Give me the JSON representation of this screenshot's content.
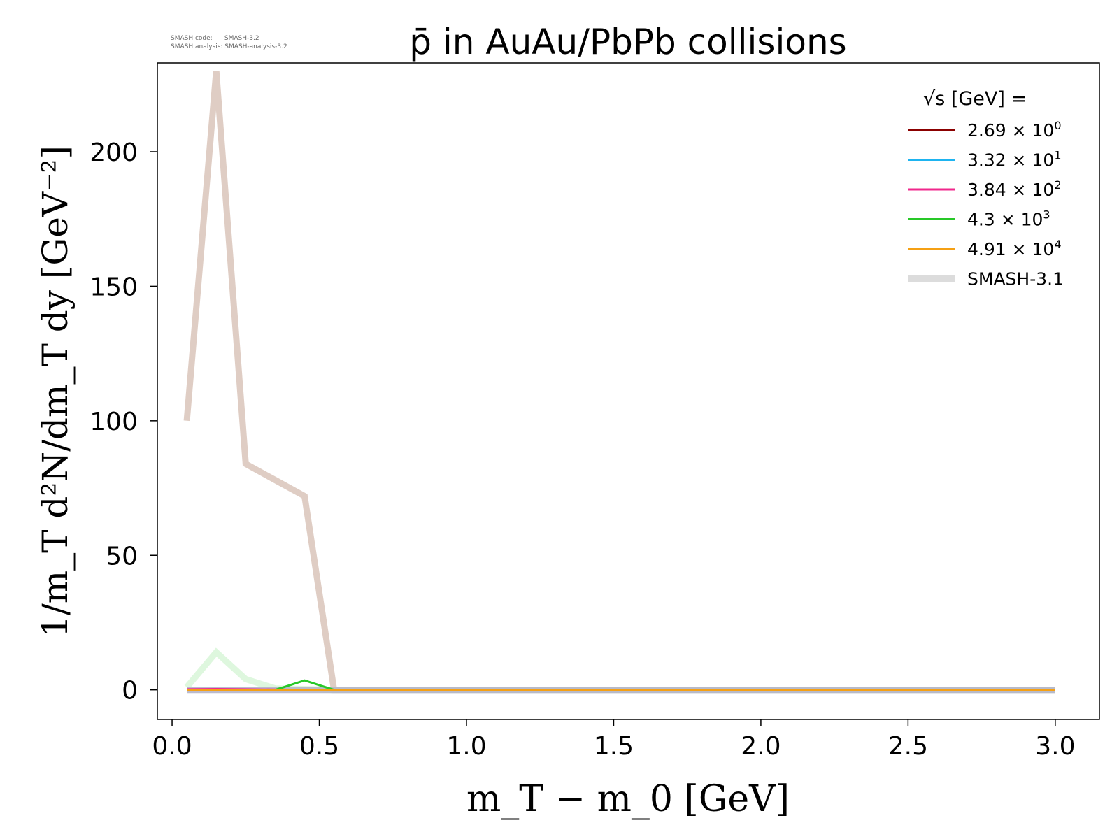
{
  "watermark": {
    "line1": "SMASH code:      SMASH-3.2",
    "line2": "SMASH analysis: SMASH-analysis-3.2"
  },
  "chart_data": {
    "type": "line",
    "title": "p̄ in AuAu/PbPb collisions",
    "xlabel": "m_T − m_0 [GeV]",
    "ylabel": "1/m_T d²N/dm_T dy [GeV⁻²]",
    "xlim": [
      -0.05,
      3.15
    ],
    "ylim": [
      -11,
      233
    ],
    "x_ticks": [
      0.0,
      0.5,
      1.0,
      1.5,
      2.0,
      2.5,
      3.0
    ],
    "x_tick_labels": [
      "0.0",
      "0.5",
      "1.0",
      "1.5",
      "2.0",
      "2.5",
      "3.0"
    ],
    "y_ticks": [
      0,
      50,
      100,
      150,
      200
    ],
    "y_tick_labels": [
      "0",
      "50",
      "100",
      "150",
      "200"
    ],
    "grid": false,
    "legend": {
      "placement": "top-right",
      "title": "√s [GeV] =",
      "entries": [
        {
          "mantissa": "2.69",
          "exponent": "0",
          "color": "#8b0000"
        },
        {
          "mantissa": "3.32",
          "exponent": "1",
          "color": "#1eb4f0"
        },
        {
          "mantissa": "3.84",
          "exponent": "2",
          "color": "#f0288c"
        },
        {
          "mantissa": "4.3",
          "exponent": "3",
          "color": "#28c828"
        },
        {
          "mantissa": "4.91",
          "exponent": "4",
          "color": "#f5a014"
        },
        {
          "label": "SMASH-3.1",
          "color": "#dcdcdc",
          "thick": true
        }
      ]
    },
    "series": [
      {
        "name": "SMASH-3.1 2.69e0",
        "color": "#dcc8be",
        "width": 9,
        "opacity": 0.9,
        "x": [
          0.05,
          0.15,
          0.25,
          0.35,
          0.45,
          0.55,
          0.65,
          1.0,
          2.0,
          3.0
        ],
        "y": [
          100,
          230,
          84,
          78,
          72,
          0,
          0,
          0,
          0,
          0
        ]
      },
      {
        "name": "SMASH-3.1 4.3e3",
        "color": "#d6f5d6",
        "width": 9,
        "opacity": 0.8,
        "x": [
          0.05,
          0.15,
          0.25,
          0.35,
          0.45,
          0.55,
          1.0,
          2.0,
          3.0
        ],
        "y": [
          1,
          14,
          4,
          0.5,
          0.3,
          0,
          0,
          0,
          0
        ]
      },
      {
        "name": "SMASH-3.1 baseline",
        "color": "#b4b4c8",
        "width": 9,
        "opacity": 0.9,
        "x": [
          0.05,
          0.5,
          1.0,
          1.5,
          2.0,
          2.5,
          3.0
        ],
        "y": [
          0,
          0,
          0,
          0,
          0,
          0,
          0
        ]
      },
      {
        "name": "2.69e0",
        "color": "#8b0000",
        "width": 3,
        "opacity": 1,
        "x": [
          0.05,
          0.15,
          0.25,
          0.35,
          0.45,
          0.55,
          1.0,
          2.0,
          3.0
        ],
        "y": [
          0,
          0,
          0,
          0,
          0,
          0,
          0,
          0,
          0
        ]
      },
      {
        "name": "3.84e2",
        "color": "#f0288c",
        "width": 3,
        "opacity": 1,
        "x": [
          0.05,
          0.15,
          0.25,
          0.35,
          0.45,
          0.55,
          1.0,
          2.0,
          3.0
        ],
        "y": [
          0.2,
          0.3,
          0.2,
          0.1,
          0,
          0,
          0,
          0,
          0
        ]
      },
      {
        "name": "4.3e3",
        "color": "#28c828",
        "width": 3,
        "opacity": 1,
        "x": [
          0.05,
          0.15,
          0.25,
          0.35,
          0.45,
          0.55,
          1.0,
          2.0,
          3.0
        ],
        "y": [
          0,
          0,
          0,
          0,
          3.5,
          0,
          0,
          0,
          0
        ]
      },
      {
        "name": "4.91e4",
        "color": "#f5a014",
        "width": 3,
        "opacity": 1,
        "x": [
          0.05,
          0.15,
          0.25,
          0.35,
          0.45,
          0.55,
          1.0,
          2.0,
          3.0
        ],
        "y": [
          0,
          0,
          0,
          0,
          0,
          0,
          0,
          0,
          0
        ]
      }
    ]
  }
}
